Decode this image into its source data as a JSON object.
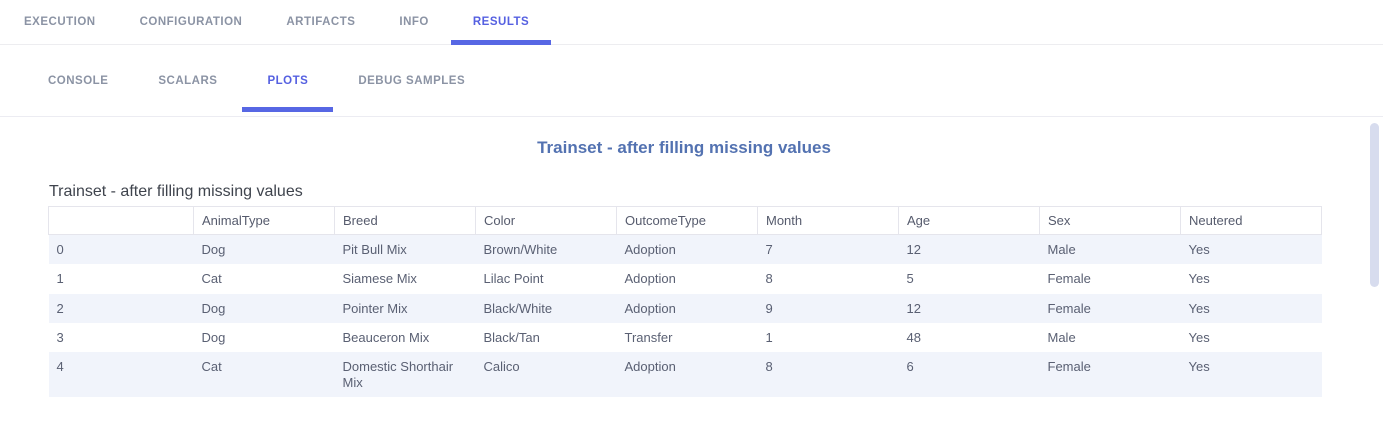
{
  "colors": {
    "accent": "#5767e4",
    "active_tab_text": "#5560e1",
    "inactive_tab_text": "#8b93a4",
    "plot_title_text": "#5372b1",
    "row_stripe": "#f1f4fb",
    "scrollbar_thumb": "#d7dcee"
  },
  "main_tabs": [
    {
      "label": "EXECUTION",
      "active": false
    },
    {
      "label": "CONFIGURATION",
      "active": false
    },
    {
      "label": "ARTIFACTS",
      "active": false
    },
    {
      "label": "INFO",
      "active": false
    },
    {
      "label": "RESULTS",
      "active": true
    }
  ],
  "sub_tabs": [
    {
      "label": "CONSOLE",
      "active": false
    },
    {
      "label": "SCALARS",
      "active": false
    },
    {
      "label": "PLOTS",
      "active": true
    },
    {
      "label": "DEBUG SAMPLES",
      "active": false
    }
  ],
  "plot": {
    "title": "Trainset - after filling missing values"
  },
  "table": {
    "title": "Trainset - after filling missing values",
    "columns": [
      "",
      "AnimalType",
      "Breed",
      "Color",
      "OutcomeType",
      "Month",
      "Age",
      "Sex",
      "Neutered"
    ],
    "rows": [
      [
        "0",
        "Dog",
        "Pit Bull Mix",
        "Brown/White",
        "Adoption",
        "7",
        "12",
        "Male",
        "Yes"
      ],
      [
        "1",
        "Cat",
        "Siamese Mix",
        "Lilac Point",
        "Adoption",
        "8",
        "5",
        "Female",
        "Yes"
      ],
      [
        "2",
        "Dog",
        "Pointer Mix",
        "Black/White",
        "Adoption",
        "9",
        "12",
        "Female",
        "Yes"
      ],
      [
        "3",
        "Dog",
        "Beauceron Mix",
        "Black/Tan",
        "Transfer",
        "1",
        "48",
        "Male",
        "Yes"
      ],
      [
        "4",
        "Cat",
        "Domestic Shorthair Mix",
        "Calico",
        "Adoption",
        "8",
        "6",
        "Female",
        "Yes"
      ]
    ]
  }
}
